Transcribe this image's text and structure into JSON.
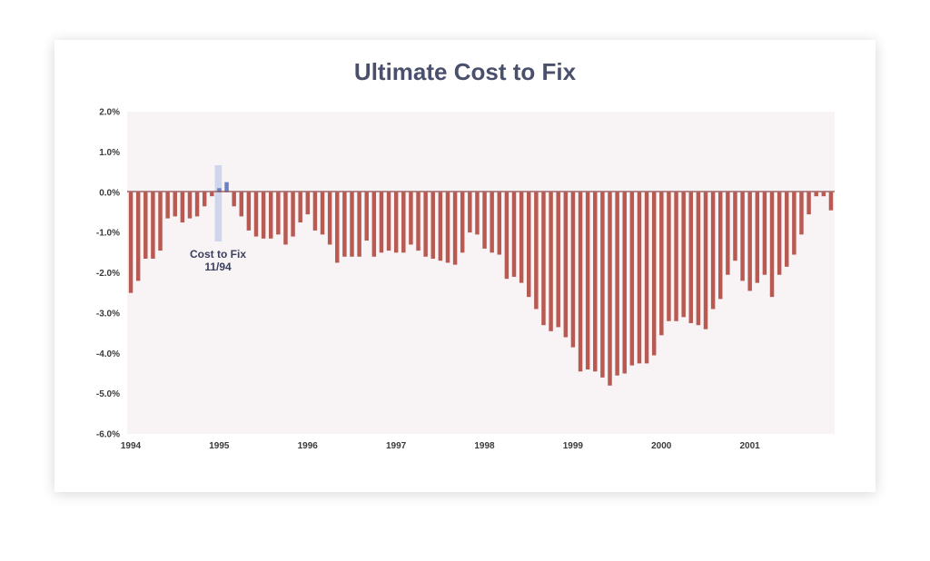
{
  "chart_data": {
    "type": "bar",
    "title": "Ultimate Cost to Fix",
    "xlabel": "",
    "ylabel": "",
    "ylim": [
      -6,
      2
    ],
    "y_ticks": [
      "2.0%",
      "1.0%",
      "0.0%",
      "-1.0%",
      "-2.0%",
      "-3.0%",
      "-4.0%",
      "-5.0%",
      "-6.0%"
    ],
    "x_ticks": [
      "1994",
      "1995",
      "1996",
      "1997",
      "1998",
      "1999",
      "2000",
      "2001"
    ],
    "grid": false,
    "colors": {
      "bar": "#b85a52",
      "highlight_bar": "#6a7fc4",
      "highlight_band": "#cdd6ea",
      "plot_bg": "#f8f3f5",
      "zero_line": "#8a4a46"
    },
    "annotation": {
      "line1": "Cost to Fix",
      "line2": "11/94"
    },
    "series": [
      {
        "values": [
          -2.5,
          -2.2,
          -1.65,
          -1.65,
          -1.45,
          -0.65,
          -0.6,
          -0.75,
          -0.65,
          -0.6,
          -0.35,
          -0.1,
          0.1,
          0.25,
          -0.35,
          -0.6,
          -0.95,
          -1.1,
          -1.15,
          -1.15,
          -1.05,
          -1.3,
          -1.1,
          -0.75,
          -0.55,
          -0.95,
          -1.05,
          -1.3,
          -1.75,
          -1.6,
          -1.6,
          -1.6,
          -1.2,
          -1.6,
          -1.5,
          -1.45,
          -1.5,
          -1.5,
          -1.3,
          -1.45,
          -1.6,
          -1.65,
          -1.7,
          -1.75,
          -1.8,
          -1.5,
          -1.0,
          -1.05,
          -1.4,
          -1.5,
          -1.55,
          -2.15,
          -2.1,
          -2.25,
          -2.6,
          -2.9,
          -3.3,
          -3.45,
          -3.35,
          -3.6,
          -3.85,
          -4.45,
          -4.4,
          -4.45,
          -4.6,
          -4.8,
          -4.55,
          -4.5,
          -4.3,
          -4.25,
          -4.25,
          -4.05,
          -3.55,
          -3.2,
          -3.2,
          -3.1,
          -3.25,
          -3.3,
          -3.4,
          -2.9,
          -2.65,
          -2.05,
          -1.7,
          -2.2,
          -2.45,
          -2.25,
          -2.05,
          -2.6,
          -2.05,
          -1.85,
          -1.55,
          -1.05,
          -0.55,
          -0.1,
          -0.1,
          -0.45
        ]
      }
    ],
    "highlight_index": 13
  }
}
